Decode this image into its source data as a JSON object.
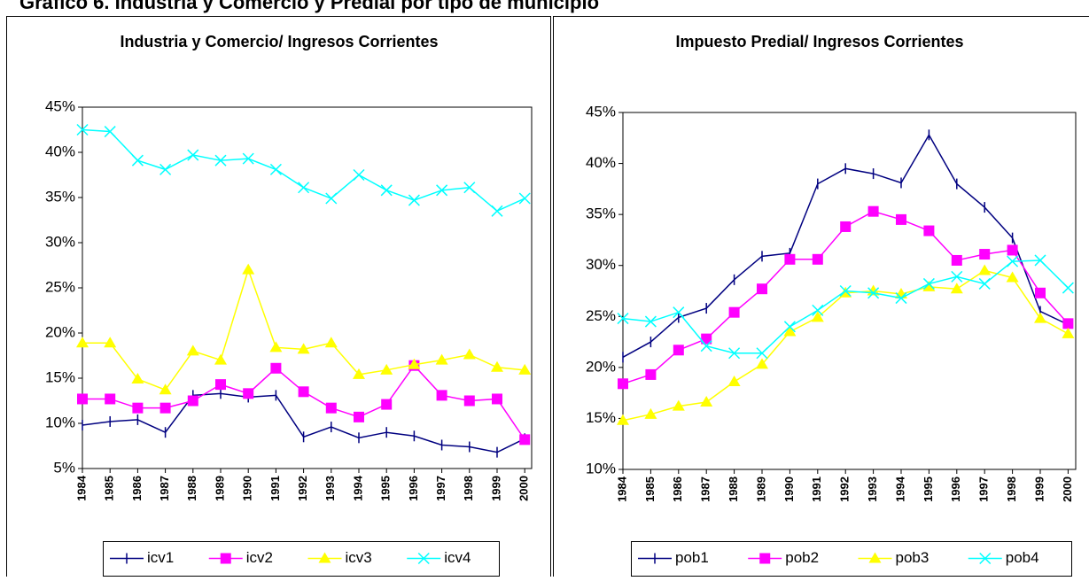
{
  "title": "Gráfico 6. Industria y Comercio y Predial por tipo de municipio",
  "chart_data": [
    {
      "type": "line",
      "title": "Industria y Comercio/ Ingresos Corrientes",
      "categories": [
        "1984",
        "1985",
        "1986",
        "1987",
        "1988",
        "1989",
        "1990",
        "1991",
        "1992",
        "1993",
        "1994",
        "1995",
        "1996",
        "1997",
        "1998",
        "1999",
        "2000"
      ],
      "series": [
        {
          "name": "icv1",
          "color": "#000080",
          "marker": "dash",
          "values": [
            9.8,
            10.2,
            10.4,
            9.0,
            13.1,
            13.3,
            12.9,
            13.1,
            8.5,
            9.6,
            8.4,
            9.0,
            8.6,
            7.6,
            7.4,
            6.8,
            8.3
          ]
        },
        {
          "name": "icv2",
          "color": "#FF00FF",
          "marker": "square",
          "values": [
            12.7,
            12.7,
            11.7,
            11.7,
            12.5,
            14.3,
            13.3,
            16.1,
            13.5,
            11.7,
            10.7,
            12.1,
            16.4,
            13.1,
            12.5,
            12.7,
            8.2
          ]
        },
        {
          "name": "icv3",
          "color": "#FFFF00",
          "marker": "triangle",
          "values": [
            18.9,
            18.9,
            14.9,
            13.7,
            18.0,
            17.0,
            27.0,
            18.4,
            18.2,
            18.9,
            15.4,
            15.9,
            16.5,
            17.0,
            17.6,
            16.2,
            15.9
          ]
        },
        {
          "name": "icv4",
          "color": "#00FFFF",
          "marker": "x",
          "values": [
            42.5,
            42.3,
            39.1,
            38.1,
            39.7,
            39.1,
            39.3,
            38.1,
            36.1,
            34.9,
            37.5,
            35.8,
            34.7,
            35.8,
            36.1,
            33.5,
            34.9
          ]
        }
      ],
      "ylim": [
        5,
        45
      ],
      "yticks": [
        {
          "value": 5,
          "label": "5%"
        },
        {
          "value": 10,
          "label": "10%"
        },
        {
          "value": 15,
          "label": "15%"
        },
        {
          "value": 20,
          "label": "20%"
        },
        {
          "value": 25,
          "label": "25%"
        },
        {
          "value": 30,
          "label": "30%"
        },
        {
          "value": 35,
          "label": "35%"
        },
        {
          "value": 40,
          "label": "40%"
        },
        {
          "value": 45,
          "label": "45%"
        }
      ],
      "grid": false,
      "legend": "bottom"
    },
    {
      "type": "line",
      "title": "Impuesto Predial/ Ingresos Corrientes",
      "categories": [
        "1984",
        "1985",
        "1986",
        "1987",
        "1988",
        "1989",
        "1990",
        "1991",
        "1992",
        "1993",
        "1994",
        "1995",
        "1996",
        "1997",
        "1998",
        "1999",
        "2000"
      ],
      "series": [
        {
          "name": "pob1",
          "color": "#000080",
          "marker": "dash",
          "values": [
            21.0,
            22.5,
            24.9,
            25.8,
            28.6,
            30.9,
            31.2,
            38.0,
            39.5,
            39.0,
            38.1,
            42.8,
            38.0,
            35.7,
            32.7,
            25.5,
            24.2
          ]
        },
        {
          "name": "pob2",
          "color": "#FF00FF",
          "marker": "square",
          "values": [
            18.4,
            19.3,
            21.7,
            22.8,
            25.4,
            27.7,
            30.6,
            30.6,
            33.8,
            35.3,
            34.5,
            33.4,
            30.5,
            31.1,
            31.5,
            27.3,
            24.3
          ]
        },
        {
          "name": "pob3",
          "color": "#FFFF00",
          "marker": "triangle",
          "values": [
            14.8,
            15.4,
            16.2,
            16.6,
            18.6,
            20.3,
            23.5,
            24.9,
            27.3,
            27.5,
            27.2,
            27.9,
            27.7,
            29.5,
            28.8,
            24.8,
            23.3
          ]
        },
        {
          "name": "pob4",
          "color": "#00FFFF",
          "marker": "x",
          "values": [
            24.8,
            24.5,
            25.4,
            22.1,
            21.4,
            21.4,
            24.0,
            25.6,
            27.5,
            27.3,
            26.8,
            28.2,
            28.9,
            28.2,
            30.4,
            30.5,
            27.8
          ]
        }
      ],
      "ylim": [
        10,
        45
      ],
      "yticks": [
        {
          "value": 10,
          "label": "10%"
        },
        {
          "value": 15,
          "label": "15%"
        },
        {
          "value": 20,
          "label": "20%"
        },
        {
          "value": 25,
          "label": "25%"
        },
        {
          "value": 30,
          "label": "30%"
        },
        {
          "value": 35,
          "label": "35%"
        },
        {
          "value": 40,
          "label": "40%"
        },
        {
          "value": 45,
          "label": "45%"
        }
      ],
      "grid": false,
      "legend": "bottom"
    }
  ]
}
